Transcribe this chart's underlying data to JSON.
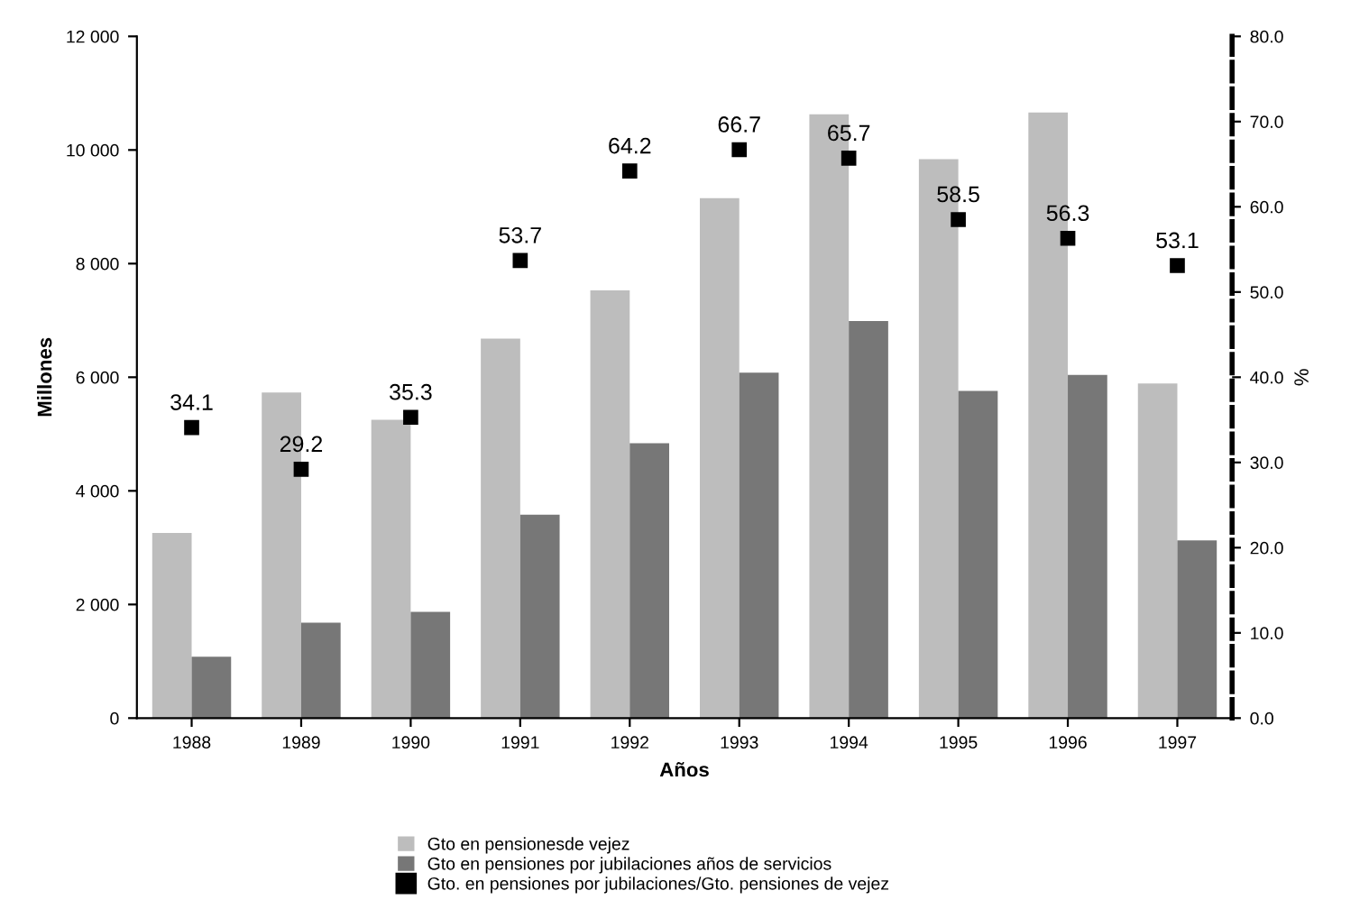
{
  "chart_data": {
    "type": "bar",
    "xlabel": "Años",
    "ylabel": "Millones",
    "y2label": "%",
    "categories": [
      "1988",
      "1989",
      "1990",
      "1991",
      "1992",
      "1993",
      "1994",
      "1995",
      "1996",
      "1997"
    ],
    "series": [
      {
        "name": "Gto en pensionesde vejez",
        "color": "#bdbdbd",
        "values": [
          3260,
          5730,
          5250,
          6680,
          7530,
          9150,
          10630,
          9840,
          10660,
          5890
        ]
      },
      {
        "name": "Gto en pensiones por jubilaciones años de servicios",
        "color": "#777777",
        "values": [
          1080,
          1680,
          1870,
          3580,
          4840,
          6080,
          6990,
          5760,
          6040,
          3130
        ]
      },
      {
        "name": "Gto. en pensiones por jubilaciones/Gto. pensiones de vejez",
        "type": "scatter",
        "axis": "y2",
        "marker": "square",
        "color": "#000000",
        "data_labels": true,
        "values": [
          34.1,
          29.2,
          35.3,
          53.7,
          64.2,
          66.7,
          65.7,
          58.5,
          56.3,
          53.1
        ]
      }
    ],
    "ylim": [
      0,
      12000
    ],
    "yticks": [
      {
        "value": 0,
        "label": "0"
      },
      {
        "value": 2000,
        "label": "2 000"
      },
      {
        "value": 4000,
        "label": "4 000"
      },
      {
        "value": 6000,
        "label": "6 000"
      },
      {
        "value": 8000,
        "label": "8 000"
      },
      {
        "value": 10000,
        "label": "10 000"
      },
      {
        "value": 12000,
        "label": "12 000"
      }
    ],
    "y2lim": [
      0,
      80
    ],
    "y2ticks": [
      {
        "value": 0,
        "label": "0.0"
      },
      {
        "value": 10,
        "label": "10.0"
      },
      {
        "value": 20,
        "label": "20.0"
      },
      {
        "value": 30,
        "label": "30.0"
      },
      {
        "value": 40,
        "label": "40.0"
      },
      {
        "value": 50,
        "label": "50.0"
      },
      {
        "value": 60,
        "label": "60.0"
      },
      {
        "value": 70,
        "label": "70.0"
      },
      {
        "value": 80,
        "label": "80.0"
      }
    ],
    "grid": false,
    "legend": "bottom"
  }
}
